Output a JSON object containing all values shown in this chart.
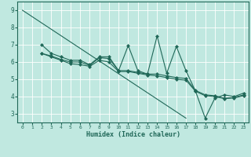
{
  "xlabel": "Humidex (Indice chaleur)",
  "bg_color": "#c0e8e0",
  "grid_color": "#a8d8d0",
  "line_color": "#206858",
  "xlim": [
    -0.5,
    23.5
  ],
  "ylim": [
    2.5,
    9.5
  ],
  "xticks": [
    0,
    1,
    2,
    3,
    4,
    5,
    6,
    7,
    8,
    9,
    10,
    11,
    12,
    13,
    14,
    15,
    16,
    17,
    18,
    19,
    20,
    21,
    22,
    23
  ],
  "yticks": [
    3,
    4,
    5,
    6,
    7,
    8,
    9
  ],
  "line1_x": [
    0,
    17
  ],
  "line1_y": [
    9.0,
    2.75
  ],
  "line2_x": [
    2,
    3,
    4,
    5,
    6,
    7,
    8,
    9,
    10,
    11,
    12,
    13,
    14,
    15,
    16,
    17,
    18,
    19,
    20,
    21,
    22,
    23
  ],
  "line2_y": [
    7.0,
    6.5,
    6.3,
    6.1,
    6.1,
    5.85,
    6.3,
    6.3,
    5.5,
    6.95,
    5.5,
    5.3,
    7.5,
    5.35,
    6.9,
    5.5,
    4.3,
    2.75,
    3.9,
    4.1,
    4.0,
    4.2
  ],
  "line3_x": [
    2,
    3,
    4,
    5,
    6,
    7,
    8,
    9,
    10,
    11,
    12,
    13,
    14,
    15,
    16,
    17,
    18,
    19,
    20,
    21,
    22,
    23
  ],
  "line3_y": [
    6.5,
    6.35,
    6.15,
    6.0,
    6.0,
    5.8,
    6.25,
    6.2,
    5.5,
    5.5,
    5.4,
    5.3,
    5.3,
    5.2,
    5.1,
    5.05,
    4.35,
    4.1,
    4.05,
    3.9,
    3.95,
    4.1
  ],
  "line4_x": [
    2,
    3,
    4,
    5,
    6,
    7,
    8,
    9,
    10,
    11,
    12,
    13,
    14,
    15,
    16,
    17,
    18,
    19,
    20,
    21,
    22,
    23
  ],
  "line4_y": [
    6.5,
    6.3,
    6.1,
    5.9,
    5.85,
    5.75,
    6.1,
    6.0,
    5.45,
    5.45,
    5.35,
    5.25,
    5.2,
    5.1,
    5.0,
    4.95,
    4.3,
    4.05,
    4.0,
    3.88,
    3.92,
    4.05
  ]
}
